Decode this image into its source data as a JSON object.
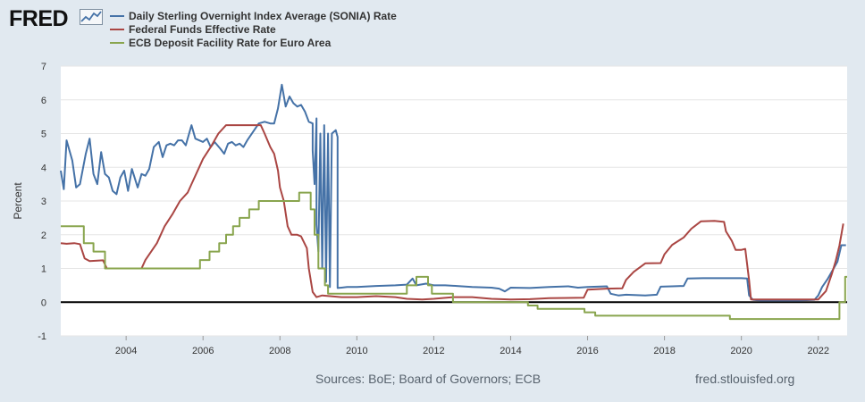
{
  "header": {
    "logo_text": "FRED",
    "logo_icon": "chart-line-icon"
  },
  "footer": {
    "sources": "Sources: BoE; Board of Governors; ECB",
    "url": "fred.stlouisfed.org"
  },
  "colors": {
    "background": "#e1e9f0",
    "plot_background": "#ffffff",
    "grid": "#e6e6e6",
    "zero_line": "#000000"
  },
  "chart_data": {
    "type": "line",
    "title": "",
    "xlabel": "",
    "ylabel": "Percent",
    "xlim": [
      2002.3,
      2022.75
    ],
    "ylim": [
      -1,
      7
    ],
    "yticks": [
      "-1",
      "0",
      "1",
      "2",
      "3",
      "4",
      "5",
      "6",
      "7"
    ],
    "xticks": [
      "2004",
      "2006",
      "2008",
      "2010",
      "2012",
      "2014",
      "2016",
      "2018",
      "2020",
      "2022"
    ],
    "grid": true,
    "legend_position": "top-left",
    "series": [
      {
        "name": "Daily Sterling Overnight Index Average (SONIA) Rate",
        "color": "#4572a7",
        "points": [
          [
            2002.3,
            3.9
          ],
          [
            2002.38,
            3.35
          ],
          [
            2002.45,
            4.8
          ],
          [
            2002.6,
            4.2
          ],
          [
            2002.7,
            3.4
          ],
          [
            2002.8,
            3.5
          ],
          [
            2002.95,
            4.4
          ],
          [
            2003.05,
            4.85
          ],
          [
            2003.15,
            3.8
          ],
          [
            2003.25,
            3.5
          ],
          [
            2003.35,
            4.45
          ],
          [
            2003.45,
            3.8
          ],
          [
            2003.55,
            3.7
          ],
          [
            2003.65,
            3.3
          ],
          [
            2003.75,
            3.2
          ],
          [
            2003.85,
            3.7
          ],
          [
            2003.95,
            3.9
          ],
          [
            2004.05,
            3.3
          ],
          [
            2004.15,
            3.95
          ],
          [
            2004.3,
            3.4
          ],
          [
            2004.4,
            3.8
          ],
          [
            2004.5,
            3.75
          ],
          [
            2004.6,
            3.95
          ],
          [
            2004.72,
            4.6
          ],
          [
            2004.85,
            4.75
          ],
          [
            2004.95,
            4.3
          ],
          [
            2005.05,
            4.65
          ],
          [
            2005.15,
            4.7
          ],
          [
            2005.25,
            4.65
          ],
          [
            2005.35,
            4.8
          ],
          [
            2005.45,
            4.8
          ],
          [
            2005.55,
            4.65
          ],
          [
            2005.7,
            5.25
          ],
          [
            2005.8,
            4.85
          ],
          [
            2005.9,
            4.8
          ],
          [
            2006.0,
            4.75
          ],
          [
            2006.1,
            4.85
          ],
          [
            2006.2,
            4.6
          ],
          [
            2006.3,
            4.75
          ],
          [
            2006.45,
            4.55
          ],
          [
            2006.55,
            4.4
          ],
          [
            2006.65,
            4.7
          ],
          [
            2006.75,
            4.75
          ],
          [
            2006.85,
            4.65
          ],
          [
            2006.95,
            4.7
          ],
          [
            2007.05,
            4.6
          ],
          [
            2007.15,
            4.8
          ],
          [
            2007.3,
            5.05
          ],
          [
            2007.45,
            5.3
          ],
          [
            2007.6,
            5.35
          ],
          [
            2007.75,
            5.3
          ],
          [
            2007.85,
            5.3
          ],
          [
            2007.95,
            5.75
          ],
          [
            2008.05,
            6.45
          ],
          [
            2008.15,
            5.8
          ],
          [
            2008.25,
            6.1
          ],
          [
            2008.35,
            5.9
          ],
          [
            2008.45,
            5.8
          ],
          [
            2008.55,
            5.85
          ],
          [
            2008.65,
            5.65
          ],
          [
            2008.75,
            5.35
          ],
          [
            2008.85,
            5.3
          ],
          [
            2008.95,
            5.45
          ],
          [
            2009.05,
            5.0
          ],
          [
            2009.15,
            5.25
          ],
          [
            2009.25,
            5.0
          ],
          [
            2009.35,
            5.0
          ],
          [
            2009.45,
            5.1
          ],
          [
            2009.5,
            4.9
          ],
          [
            2008.85,
            4.5
          ],
          [
            2008.9,
            3.5
          ],
          [
            2008.95,
            2.3
          ],
          [
            2009.0,
            1.5
          ],
          [
            2009.1,
            1.0
          ],
          [
            2009.2,
            0.6
          ],
          [
            2009.3,
            0.45
          ],
          [
            2009.5,
            0.42
          ],
          [
            2009.75,
            0.45
          ],
          [
            2010.0,
            0.45
          ],
          [
            2010.5,
            0.48
          ],
          [
            2011.0,
            0.5
          ],
          [
            2011.3,
            0.52
          ],
          [
            2011.45,
            0.7
          ],
          [
            2011.55,
            0.5
          ],
          [
            2011.8,
            0.55
          ],
          [
            2012.0,
            0.5
          ],
          [
            2012.3,
            0.5
          ],
          [
            2012.6,
            0.48
          ],
          [
            2013.0,
            0.45
          ],
          [
            2013.5,
            0.43
          ],
          [
            2013.7,
            0.4
          ],
          [
            2013.85,
            0.32
          ],
          [
            2014.0,
            0.43
          ],
          [
            2014.5,
            0.42
          ],
          [
            2015.0,
            0.45
          ],
          [
            2015.5,
            0.47
          ],
          [
            2015.75,
            0.43
          ],
          [
            2016.0,
            0.45
          ],
          [
            2016.5,
            0.47
          ],
          [
            2016.6,
            0.25
          ],
          [
            2016.8,
            0.2
          ],
          [
            2017.0,
            0.22
          ],
          [
            2017.5,
            0.2
          ],
          [
            2017.8,
            0.22
          ],
          [
            2017.9,
            0.46
          ],
          [
            2018.2,
            0.47
          ],
          [
            2018.5,
            0.48
          ],
          [
            2018.6,
            0.7
          ],
          [
            2019.0,
            0.71
          ],
          [
            2019.5,
            0.71
          ],
          [
            2020.0,
            0.71
          ],
          [
            2020.15,
            0.7
          ],
          [
            2020.2,
            0.2
          ],
          [
            2020.3,
            0.07
          ],
          [
            2020.5,
            0.05
          ],
          [
            2021.0,
            0.05
          ],
          [
            2021.5,
            0.05
          ],
          [
            2021.9,
            0.07
          ],
          [
            2022.0,
            0.2
          ],
          [
            2022.1,
            0.45
          ],
          [
            2022.25,
            0.7
          ],
          [
            2022.4,
            1.0
          ],
          [
            2022.5,
            1.2
          ],
          [
            2022.6,
            1.69
          ],
          [
            2022.72,
            1.69
          ]
        ]
      },
      {
        "name": "Federal Funds Effective Rate",
        "color": "#aa4643",
        "points": [
          [
            2002.3,
            1.75
          ],
          [
            2002.45,
            1.73
          ],
          [
            2002.65,
            1.75
          ],
          [
            2002.8,
            1.72
          ],
          [
            2002.92,
            1.3
          ],
          [
            2003.05,
            1.22
          ],
          [
            2003.4,
            1.24
          ],
          [
            2003.5,
            1.0
          ],
          [
            2003.9,
            1.0
          ],
          [
            2004.4,
            1.0
          ],
          [
            2004.5,
            1.25
          ],
          [
            2004.8,
            1.75
          ],
          [
            2005.0,
            2.25
          ],
          [
            2005.2,
            2.6
          ],
          [
            2005.4,
            3.0
          ],
          [
            2005.6,
            3.25
          ],
          [
            2005.7,
            3.5
          ],
          [
            2005.9,
            4.0
          ],
          [
            2006.0,
            4.25
          ],
          [
            2006.2,
            4.6
          ],
          [
            2006.4,
            5.0
          ],
          [
            2006.6,
            5.25
          ],
          [
            2007.0,
            5.25
          ],
          [
            2007.5,
            5.25
          ],
          [
            2007.6,
            5.0
          ],
          [
            2007.75,
            4.6
          ],
          [
            2007.85,
            4.4
          ],
          [
            2007.95,
            3.9
          ],
          [
            2008.0,
            3.4
          ],
          [
            2008.1,
            3.0
          ],
          [
            2008.2,
            2.25
          ],
          [
            2008.3,
            2.0
          ],
          [
            2008.45,
            2.0
          ],
          [
            2008.55,
            1.95
          ],
          [
            2008.7,
            1.6
          ],
          [
            2008.75,
            1.0
          ],
          [
            2008.85,
            0.3
          ],
          [
            2008.95,
            0.15
          ],
          [
            2009.1,
            0.2
          ],
          [
            2009.3,
            0.18
          ],
          [
            2009.6,
            0.15
          ],
          [
            2010.0,
            0.15
          ],
          [
            2010.5,
            0.18
          ],
          [
            2011.0,
            0.15
          ],
          [
            2011.3,
            0.1
          ],
          [
            2011.7,
            0.08
          ],
          [
            2012.0,
            0.1
          ],
          [
            2012.5,
            0.15
          ],
          [
            2013.0,
            0.15
          ],
          [
            2013.5,
            0.1
          ],
          [
            2014.0,
            0.08
          ],
          [
            2014.5,
            0.09
          ],
          [
            2015.0,
            0.12
          ],
          [
            2015.9,
            0.13
          ],
          [
            2016.0,
            0.37
          ],
          [
            2016.5,
            0.4
          ],
          [
            2016.9,
            0.41
          ],
          [
            2017.0,
            0.66
          ],
          [
            2017.2,
            0.9
          ],
          [
            2017.5,
            1.15
          ],
          [
            2017.9,
            1.16
          ],
          [
            2018.0,
            1.42
          ],
          [
            2018.2,
            1.7
          ],
          [
            2018.5,
            1.92
          ],
          [
            2018.7,
            2.18
          ],
          [
            2018.95,
            2.4
          ],
          [
            2019.3,
            2.41
          ],
          [
            2019.55,
            2.38
          ],
          [
            2019.6,
            2.1
          ],
          [
            2019.75,
            1.82
          ],
          [
            2019.85,
            1.55
          ],
          [
            2020.0,
            1.55
          ],
          [
            2020.1,
            1.58
          ],
          [
            2020.2,
            0.65
          ],
          [
            2020.25,
            0.08
          ],
          [
            2020.5,
            0.08
          ],
          [
            2021.0,
            0.08
          ],
          [
            2021.5,
            0.08
          ],
          [
            2022.0,
            0.08
          ],
          [
            2022.2,
            0.33
          ],
          [
            2022.35,
            0.83
          ],
          [
            2022.45,
            1.21
          ],
          [
            2022.55,
            1.68
          ],
          [
            2022.65,
            2.33
          ]
        ]
      },
      {
        "name": "ECB Deposit Facility Rate for Euro Area",
        "color": "#89a54e",
        "points": [
          [
            2002.3,
            2.25
          ],
          [
            2002.9,
            2.25
          ],
          [
            2002.9,
            1.75
          ],
          [
            2003.15,
            1.75
          ],
          [
            2003.15,
            1.5
          ],
          [
            2003.45,
            1.5
          ],
          [
            2003.45,
            1.0
          ],
          [
            2005.92,
            1.0
          ],
          [
            2005.92,
            1.25
          ],
          [
            2006.17,
            1.25
          ],
          [
            2006.17,
            1.5
          ],
          [
            2006.42,
            1.5
          ],
          [
            2006.42,
            1.75
          ],
          [
            2006.6,
            1.75
          ],
          [
            2006.6,
            2.0
          ],
          [
            2006.78,
            2.0
          ],
          [
            2006.78,
            2.25
          ],
          [
            2006.95,
            2.25
          ],
          [
            2006.95,
            2.5
          ],
          [
            2007.2,
            2.5
          ],
          [
            2007.2,
            2.75
          ],
          [
            2007.45,
            2.75
          ],
          [
            2007.45,
            3.0
          ],
          [
            2008.5,
            3.0
          ],
          [
            2008.5,
            3.25
          ],
          [
            2008.8,
            3.25
          ],
          [
            2008.8,
            2.75
          ],
          [
            2008.9,
            2.75
          ],
          [
            2008.9,
            2.0
          ],
          [
            2009.0,
            2.0
          ],
          [
            2009.0,
            1.0
          ],
          [
            2009.17,
            1.0
          ],
          [
            2009.17,
            0.5
          ],
          [
            2009.25,
            0.5
          ],
          [
            2009.25,
            0.25
          ],
          [
            2011.3,
            0.25
          ],
          [
            2011.3,
            0.5
          ],
          [
            2011.55,
            0.5
          ],
          [
            2011.55,
            0.75
          ],
          [
            2011.85,
            0.75
          ],
          [
            2011.85,
            0.5
          ],
          [
            2011.95,
            0.5
          ],
          [
            2011.95,
            0.25
          ],
          [
            2012.5,
            0.25
          ],
          [
            2012.5,
            0.0
          ],
          [
            2014.45,
            0.0
          ],
          [
            2014.45,
            -0.1
          ],
          [
            2014.7,
            -0.1
          ],
          [
            2014.7,
            -0.2
          ],
          [
            2015.92,
            -0.2
          ],
          [
            2015.92,
            -0.3
          ],
          [
            2016.2,
            -0.3
          ],
          [
            2016.2,
            -0.4
          ],
          [
            2019.7,
            -0.4
          ],
          [
            2019.7,
            -0.5
          ],
          [
            2022.55,
            -0.5
          ],
          [
            2022.55,
            0.0
          ],
          [
            2022.7,
            0.0
          ],
          [
            2022.7,
            0.75
          ],
          [
            2022.75,
            0.75
          ]
        ]
      }
    ]
  }
}
